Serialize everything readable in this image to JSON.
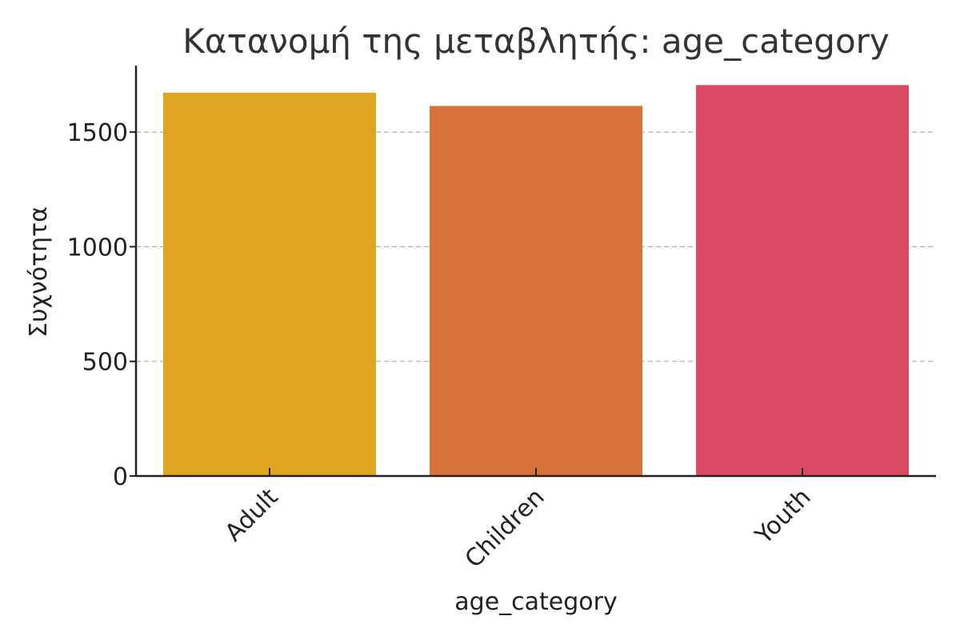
{
  "chart_data": {
    "type": "bar",
    "title": "Κατανομή της μεταβλητής: age_category",
    "xlabel": "age_category",
    "ylabel": "Συχνότητα",
    "categories": [
      "Adult",
      "Children",
      "Youth"
    ],
    "values": [
      1672,
      1614,
      1705
    ],
    "colors": [
      "#DFA420",
      "#D9713B",
      "#DC4B66"
    ],
    "ylim": [
      0,
      1790
    ],
    "yticks": [
      0,
      500,
      1000,
      1500
    ],
    "ytick_labels": [
      "0",
      "500",
      "1000",
      "1500"
    ],
    "grid": "horizontal-dashed",
    "legend": "none"
  }
}
